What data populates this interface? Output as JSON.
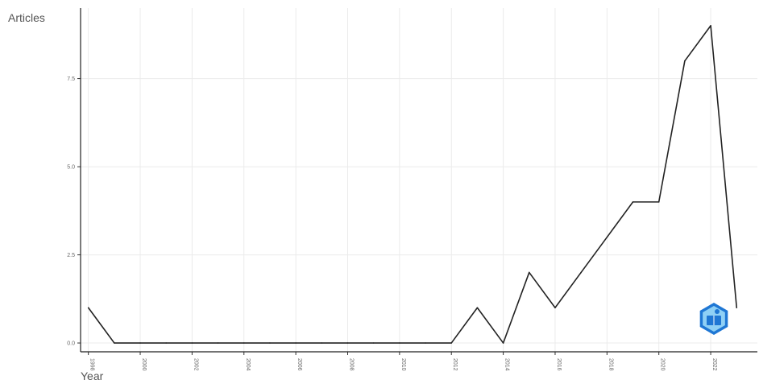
{
  "chart_data": {
    "type": "line",
    "xlabel": "Year",
    "ylabel": "Articles",
    "x": [
      1998,
      1999,
      2000,
      2001,
      2002,
      2003,
      2004,
      2005,
      2006,
      2007,
      2008,
      2009,
      2010,
      2011,
      2012,
      2013,
      2014,
      2015,
      2016,
      2017,
      2018,
      2019,
      2020,
      2021,
      2022,
      2023
    ],
    "series": [
      {
        "values": [
          1,
          0,
          0,
          0,
          0,
          0,
          0,
          0,
          0,
          0,
          0,
          0,
          0,
          0,
          0,
          1,
          0,
          2,
          1,
          2,
          3,
          4,
          4,
          8,
          9,
          1
        ]
      }
    ],
    "x_ticks": [
      "1998",
      "2000",
      "2002",
      "2004",
      "2006",
      "2008",
      "2010",
      "2012",
      "2014",
      "2016",
      "2018",
      "2020",
      "2022"
    ],
    "y_ticks": [
      "0.0",
      "2.5",
      "5.0",
      "7.5"
    ],
    "ylim": [
      -0.25,
      9.5
    ],
    "xlim": [
      1997.7,
      2023.8
    ],
    "grid": true,
    "line_color": "#222222",
    "grid_color": "#ebebeb",
    "logo_icon": "bibliometrix-hexagon-logo",
    "logo_colors": [
      "#1f77d4",
      "#8fd0f5"
    ]
  }
}
